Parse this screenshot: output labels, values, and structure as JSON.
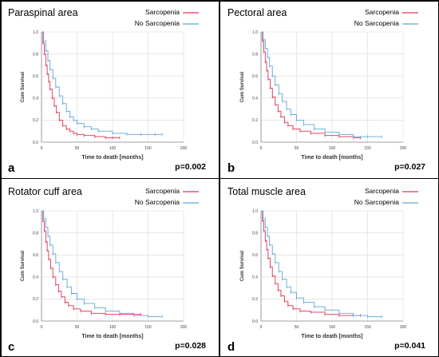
{
  "colors": {
    "sarcopenia": "#e03050",
    "no_sarcopenia": "#5fa8d8",
    "gridline": "#d8d8d8",
    "axis": "#888888",
    "divider": "#000000"
  },
  "chart_data": [
    {
      "type": "line",
      "panel_letter": "a",
      "title": "Paraspinal area",
      "xlabel": "Time to death [months]",
      "ylabel": "Cum Survival",
      "p_value": "p=0.002",
      "xlim": [
        0,
        200
      ],
      "ylim": [
        0,
        1.0
      ],
      "xticks": [
        "0",
        "50",
        "100",
        "150",
        "200"
      ],
      "yticks": [
        "0.0",
        "0.2",
        "0.4",
        "0.6",
        "0.8",
        "1.0"
      ],
      "grid": true,
      "legend_position": "top-right",
      "series": [
        {
          "name": "Sarcopenia",
          "x": [
            0,
            2,
            4,
            6,
            8,
            10,
            12,
            15,
            18,
            21,
            25,
            30,
            35,
            40,
            45,
            50,
            60,
            75,
            90,
            100,
            110
          ],
          "y": [
            1.0,
            0.9,
            0.8,
            0.7,
            0.62,
            0.55,
            0.48,
            0.4,
            0.33,
            0.27,
            0.2,
            0.15,
            0.12,
            0.1,
            0.08,
            0.07,
            0.06,
            0.05,
            0.04,
            0.04,
            0.04
          ]
        },
        {
          "name": "No Sarcopenia",
          "x": [
            0,
            3,
            6,
            9,
            12,
            16,
            20,
            25,
            30,
            35,
            40,
            45,
            50,
            60,
            70,
            80,
            100,
            120,
            140,
            160,
            170
          ],
          "y": [
            1.0,
            0.92,
            0.83,
            0.74,
            0.66,
            0.58,
            0.5,
            0.42,
            0.35,
            0.28,
            0.23,
            0.2,
            0.17,
            0.14,
            0.12,
            0.1,
            0.08,
            0.07,
            0.07,
            0.07,
            0.07
          ]
        }
      ]
    },
    {
      "type": "line",
      "panel_letter": "b",
      "title": "Pectoral area",
      "xlabel": "Time to death [months]",
      "ylabel": "Cum Survival",
      "p_value": "p=0.027",
      "xlim": [
        0,
        200
      ],
      "ylim": [
        0,
        1.0
      ],
      "xticks": [
        "0",
        "50",
        "100",
        "150",
        "200"
      ],
      "yticks": [
        "0.0",
        "0.2",
        "0.4",
        "0.6",
        "0.8",
        "1.0"
      ],
      "grid": true,
      "legend_position": "top-right",
      "series": [
        {
          "name": "Sarcopenia",
          "x": [
            0,
            2,
            4,
            6,
            8,
            10,
            13,
            16,
            20,
            24,
            28,
            33,
            38,
            45,
            55,
            70,
            90,
            110,
            130,
            140
          ],
          "y": [
            1.0,
            0.92,
            0.82,
            0.73,
            0.65,
            0.57,
            0.49,
            0.41,
            0.34,
            0.28,
            0.23,
            0.18,
            0.15,
            0.12,
            0.1,
            0.08,
            0.06,
            0.05,
            0.04,
            0.04
          ]
        },
        {
          "name": "No Sarcopenia",
          "x": [
            0,
            3,
            6,
            9,
            12,
            16,
            20,
            25,
            30,
            36,
            42,
            50,
            60,
            75,
            90,
            110,
            130,
            150,
            170
          ],
          "y": [
            1.0,
            0.93,
            0.85,
            0.77,
            0.69,
            0.6,
            0.52,
            0.44,
            0.37,
            0.3,
            0.25,
            0.2,
            0.16,
            0.12,
            0.09,
            0.07,
            0.05,
            0.05,
            0.05
          ]
        }
      ]
    },
    {
      "type": "line",
      "panel_letter": "c",
      "title": "Rotator cuff area",
      "xlabel": "Time to death [months]",
      "ylabel": "Cum Survival",
      "p_value": "p=0.028",
      "xlim": [
        0,
        200
      ],
      "ylim": [
        0,
        1.0
      ],
      "xticks": [
        "0",
        "50",
        "100",
        "150",
        "200"
      ],
      "yticks": [
        "0.0",
        "0.2",
        "0.4",
        "0.6",
        "0.8",
        "1.0"
      ],
      "grid": true,
      "legend_position": "top-right",
      "series": [
        {
          "name": "Sarcopenia",
          "x": [
            0,
            2,
            4,
            6,
            8,
            10,
            13,
            16,
            20,
            24,
            28,
            33,
            38,
            45,
            55,
            70,
            90,
            110,
            130,
            140
          ],
          "y": [
            1.0,
            0.91,
            0.82,
            0.72,
            0.64,
            0.56,
            0.48,
            0.4,
            0.33,
            0.27,
            0.22,
            0.17,
            0.14,
            0.11,
            0.09,
            0.07,
            0.06,
            0.06,
            0.06,
            0.06
          ]
        },
        {
          "name": "No Sarcopenia",
          "x": [
            0,
            3,
            6,
            9,
            12,
            16,
            20,
            25,
            30,
            36,
            42,
            50,
            60,
            75,
            90,
            110,
            130,
            150,
            170
          ],
          "y": [
            1.0,
            0.93,
            0.85,
            0.77,
            0.69,
            0.61,
            0.53,
            0.45,
            0.38,
            0.31,
            0.25,
            0.2,
            0.16,
            0.12,
            0.09,
            0.07,
            0.05,
            0.04,
            0.04
          ]
        }
      ]
    },
    {
      "type": "line",
      "panel_letter": "d",
      "title": "Total muscle area",
      "xlabel": "Time to death [months]",
      "ylabel": "Cum Survival",
      "p_value": "p=0.041",
      "xlim": [
        0,
        200
      ],
      "ylim": [
        0,
        1.0
      ],
      "xticks": [
        "0",
        "50",
        "100",
        "150",
        "200"
      ],
      "yticks": [
        "0.0",
        "0.2",
        "0.4",
        "0.6",
        "0.8",
        "1.0"
      ],
      "grid": true,
      "legend_position": "top-right",
      "series": [
        {
          "name": "Sarcopenia",
          "x": [
            0,
            2,
            4,
            6,
            8,
            10,
            13,
            16,
            20,
            24,
            28,
            33,
            38,
            45,
            55,
            70,
            90,
            110,
            130,
            140
          ],
          "y": [
            1.0,
            0.91,
            0.82,
            0.73,
            0.65,
            0.57,
            0.49,
            0.41,
            0.34,
            0.28,
            0.23,
            0.18,
            0.14,
            0.11,
            0.09,
            0.08,
            0.06,
            0.05,
            0.05,
            0.05
          ]
        },
        {
          "name": "No Sarcopenia",
          "x": [
            0,
            3,
            6,
            9,
            12,
            16,
            20,
            25,
            30,
            36,
            42,
            50,
            60,
            75,
            90,
            110,
            130,
            150,
            170
          ],
          "y": [
            1.0,
            0.93,
            0.85,
            0.77,
            0.69,
            0.61,
            0.53,
            0.45,
            0.38,
            0.31,
            0.26,
            0.21,
            0.17,
            0.13,
            0.1,
            0.07,
            0.05,
            0.04,
            0.04
          ]
        }
      ]
    }
  ]
}
